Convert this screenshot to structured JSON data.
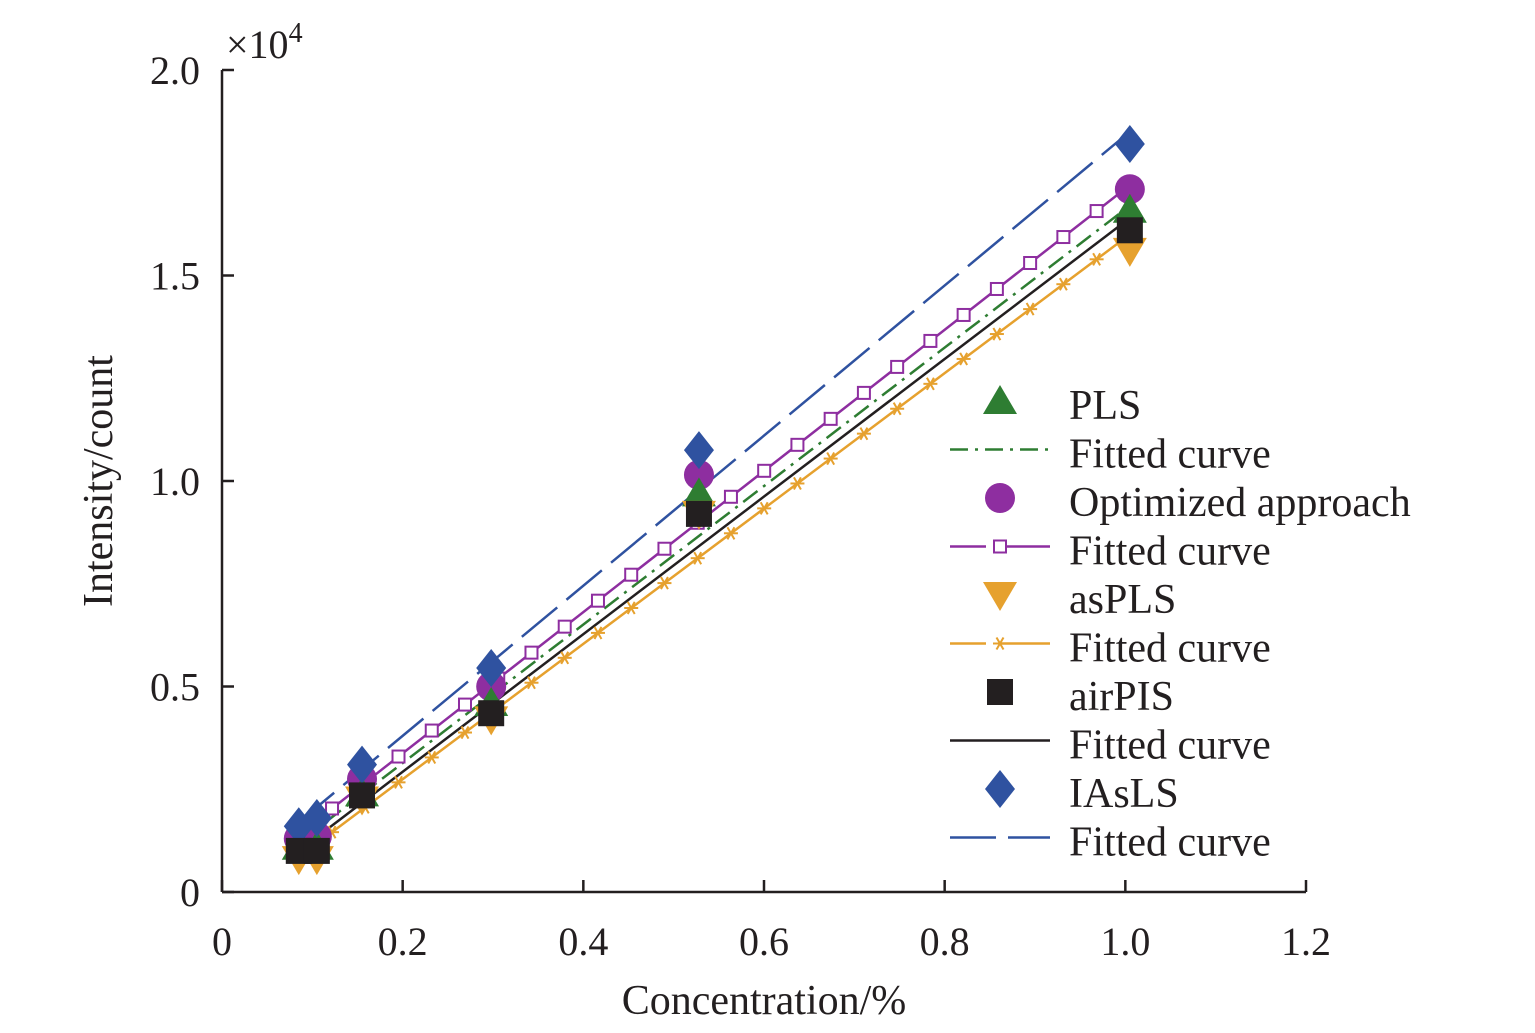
{
  "chart_data": {
    "type": "scatter",
    "xlabel": "Concentration/%",
    "ylabel": "Intensity/count",
    "y_scale_note": "×10",
    "y_scale_exponent": "4",
    "xlim": [
      0,
      1.2
    ],
    "ylim": [
      0,
      2.0
    ],
    "x_ticks": [
      "0",
      "0.2",
      "0.4",
      "0.6",
      "0.8",
      "1.0",
      "1.2"
    ],
    "y_ticks": [
      "0",
      "0.5",
      "1.0",
      "1.5",
      "2.0"
    ],
    "x_tick_values": [
      0,
      0.2,
      0.4,
      0.6,
      0.8,
      1.0,
      1.2
    ],
    "y_tick_values": [
      0,
      0.5,
      1.0,
      1.5,
      2.0
    ],
    "grid": false,
    "legend_position": "right",
    "x": [
      0.085,
      0.105,
      0.155,
      0.298,
      0.528,
      1.005
    ],
    "series": [
      {
        "name": "PLS",
        "marker": "triangle-up",
        "color": "#2e7d32",
        "values": [
          0.11,
          0.11,
          0.24,
          0.46,
          0.97,
          1.66
        ],
        "fit": {
          "name": "Fitted curve",
          "style": "dash-dot",
          "color": "#2e7d32",
          "x_range": [
            0.085,
            1.005
          ],
          "y_range": [
            0.12,
            1.67
          ]
        }
      },
      {
        "name": "Optimized approach",
        "marker": "circle",
        "color": "#8e2ea0",
        "values": [
          0.13,
          0.135,
          0.275,
          0.5,
          1.015,
          1.71
        ],
        "fit": {
          "name": "Fitted curve",
          "style": "solid-open-square",
          "color": "#8e2ea0",
          "x_range": [
            0.085,
            1.005
          ],
          "y_range": [
            0.14,
            1.72
          ]
        }
      },
      {
        "name": "asPLS",
        "marker": "triangle-down",
        "color": "#e6a12e",
        "values": [
          0.08,
          0.08,
          0.225,
          0.42,
          0.92,
          1.56
        ],
        "fit": {
          "name": "Fitted curve",
          "style": "solid-star",
          "color": "#e6a12e",
          "x_range": [
            0.085,
            1.005
          ],
          "y_range": [
            0.085,
            1.6
          ]
        }
      },
      {
        "name": "airPIS",
        "marker": "square",
        "color": "#231f20",
        "values": [
          0.1,
          0.1,
          0.235,
          0.435,
          0.92,
          1.61
        ],
        "fit": {
          "name": "Fitted curve",
          "style": "solid",
          "color": "#231f20",
          "x_range": [
            0.085,
            1.005
          ],
          "y_range": [
            0.1,
            1.64
          ]
        }
      },
      {
        "name": "IAsLS",
        "marker": "diamond",
        "color": "#2f52a0",
        "values": [
          0.16,
          0.18,
          0.31,
          0.545,
          1.075,
          1.82
        ],
        "fit": {
          "name": "Fitted curve",
          "style": "long-dash",
          "color": "#2f52a0",
          "x_range": [
            0.085,
            1.005
          ],
          "y_range": [
            0.17,
            1.85
          ]
        }
      }
    ]
  }
}
